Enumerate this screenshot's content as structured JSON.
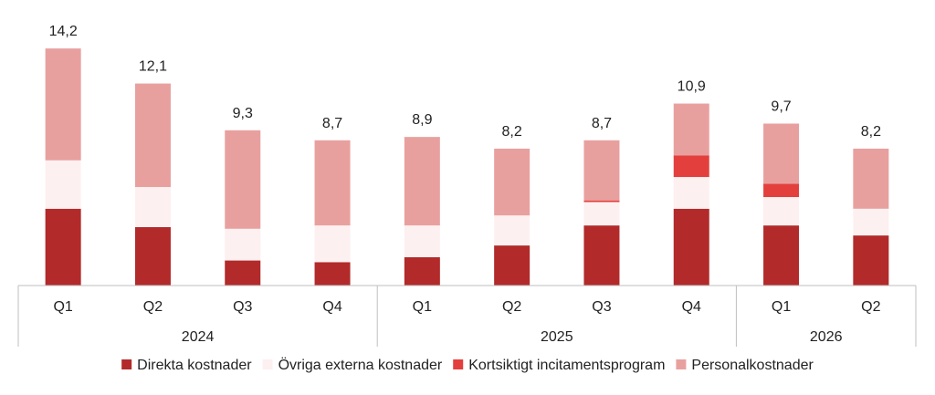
{
  "chart_data": {
    "type": "bar",
    "stacked": true,
    "categories": [
      "Q1",
      "Q2",
      "Q3",
      "Q4",
      "Q1",
      "Q2",
      "Q3",
      "Q4",
      "Q1",
      "Q2"
    ],
    "groups": [
      {
        "label": "2024",
        "count": 4
      },
      {
        "label": "2025",
        "count": 4
      },
      {
        "label": "2026",
        "count": 2
      }
    ],
    "totals": [
      "14,2",
      "12,1",
      "9,3",
      "8,7",
      "8,9",
      "8,2",
      "8,7",
      "10,9",
      "9,7",
      "8,2"
    ],
    "total_values": [
      14.2,
      12.1,
      9.3,
      8.7,
      8.9,
      8.2,
      8.7,
      10.9,
      9.7,
      8.2
    ],
    "series": [
      {
        "name": "Direkta kostnader",
        "color": "#b22a2a",
        "values": [
          4.6,
          3.5,
          1.5,
          1.4,
          1.7,
          2.4,
          3.6,
          4.6,
          3.6,
          3.0
        ]
      },
      {
        "name": "Övriga externa kostnader",
        "color": "#fdf0f0",
        "values": [
          2.9,
          2.4,
          1.9,
          2.2,
          1.9,
          1.8,
          1.4,
          1.9,
          1.7,
          1.6
        ]
      },
      {
        "name": "Kortsiktigt incitamentsprogram",
        "color": "#e3403d",
        "values": [
          0,
          0,
          0,
          0,
          0,
          0,
          0.1,
          1.3,
          0.8,
          0
        ]
      },
      {
        "name": "Personalkostnader",
        "color": "#e8a09f",
        "values": [
          6.7,
          6.2,
          5.9,
          5.1,
          5.3,
          4.0,
          3.6,
          3.1,
          3.6,
          3.6
        ]
      }
    ],
    "legend_position": "bottom",
    "grid": false
  }
}
